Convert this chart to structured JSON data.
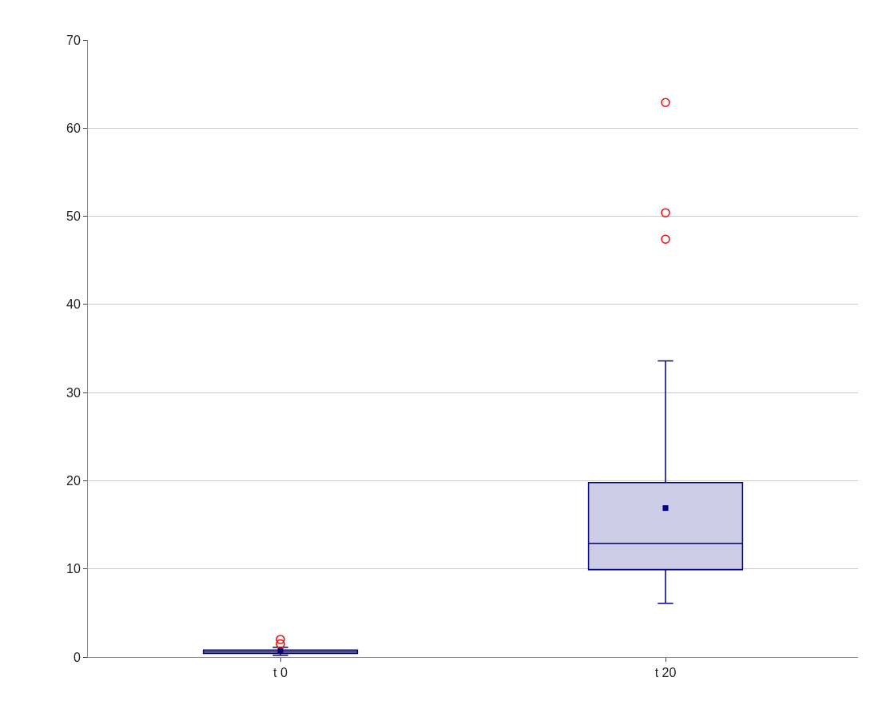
{
  "chart_data": {
    "type": "box",
    "categories": [
      "t 0",
      "t 20"
    ],
    "series": [
      {
        "color": "#000080",
        "boxes": [
          {
            "low": 0.2,
            "q1": 0.4,
            "median": 0.6,
            "q3": 0.8,
            "high": 1.1,
            "mean": 0.7,
            "outliers": [
              1.5,
              2.0
            ]
          },
          {
            "low": 6.1,
            "q1": 9.9,
            "median": 12.9,
            "q3": 19.8,
            "high": 33.6,
            "mean": 16.9,
            "outliers": [
              47.4,
              50.4,
              62.9
            ]
          }
        ]
      }
    ],
    "ylim": [
      0,
      70
    ],
    "yticks": [
      0,
      10,
      20,
      30,
      40,
      50,
      60,
      70
    ],
    "grid": "y"
  }
}
